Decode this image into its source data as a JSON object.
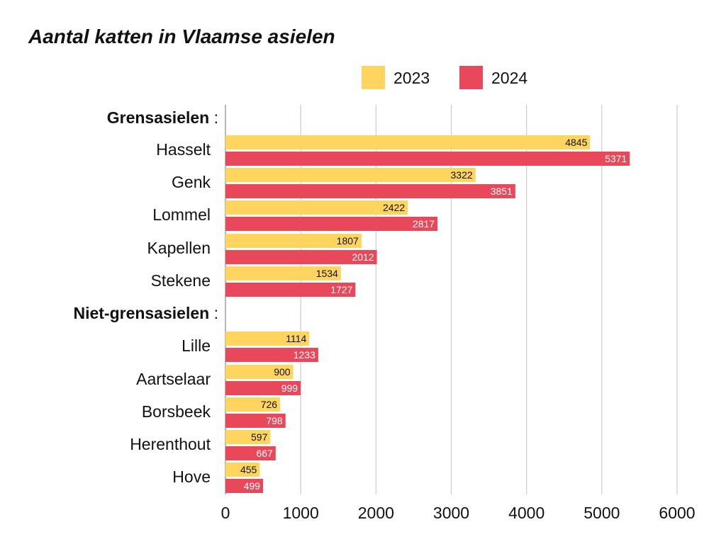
{
  "chart_data": {
    "type": "bar",
    "orientation": "horizontal",
    "title": "Aantal katten in Vlaamse asielen",
    "groups": [
      {
        "label": "Grensasielen",
        "suffix": " :",
        "categories": [
          "Hasselt",
          "Genk",
          "Lommel",
          "Kapellen",
          "Stekene"
        ]
      },
      {
        "label": "Niet-grensasielen",
        "suffix": " :",
        "categories": [
          "Lille",
          "Aartselaar",
          "Borsbeek",
          "Herenthout",
          "Hove"
        ]
      }
    ],
    "categories": [
      "Hasselt",
      "Genk",
      "Lommel",
      "Kapellen",
      "Stekene",
      "Lille",
      "Aartselaar",
      "Borsbeek",
      "Herenthout",
      "Hove"
    ],
    "series": [
      {
        "name": "2023",
        "color": "#FFD45F",
        "label_color": "#111111",
        "values": [
          4845,
          3322,
          2422,
          1807,
          1534,
          1114,
          900,
          726,
          597,
          455
        ]
      },
      {
        "name": "2024",
        "color": "#E8485A",
        "label_color": "#ffffff",
        "values": [
          5371,
          3851,
          2817,
          2012,
          1727,
          1233,
          999,
          798,
          667,
          499
        ]
      }
    ],
    "xlim": [
      0,
      6000
    ],
    "xticks": [
      0,
      1000,
      2000,
      3000,
      4000,
      5000,
      6000
    ],
    "grid": true,
    "gridline_color": "#cccccc",
    "legend_position": "top-right"
  }
}
